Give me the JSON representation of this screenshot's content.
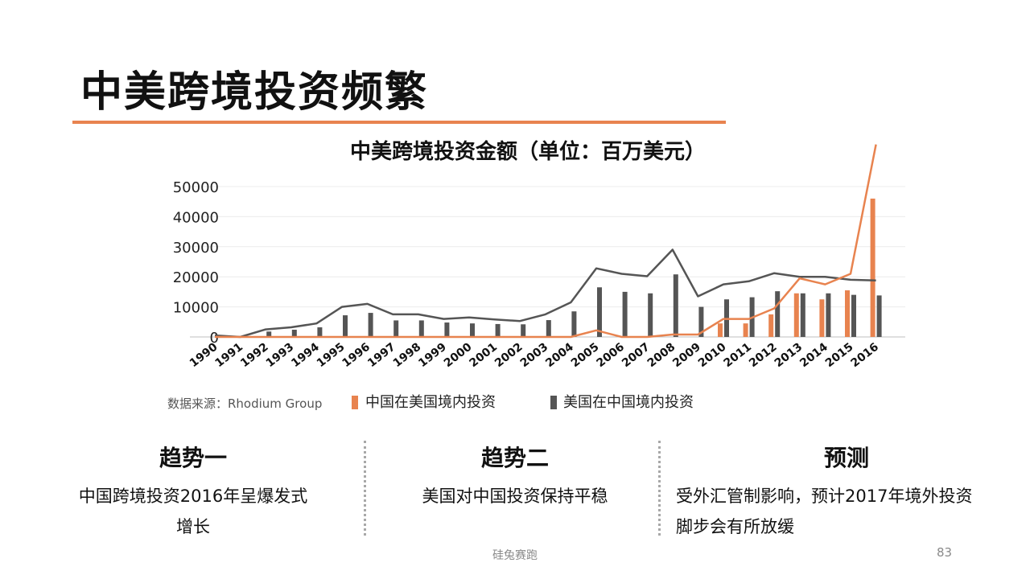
{
  "slide": {
    "title": "中美跨境投资频繁",
    "accent_color": "#e8834f",
    "footer_text": "硅兔赛跑",
    "page_number": "83"
  },
  "chart_data": {
    "type": "bar",
    "title": "中美跨境投资金额（单位：百万美元）",
    "source": "数据来源：Rhodium Group",
    "ylim": [
      0,
      50000
    ],
    "yticks": [
      "50000",
      "40000",
      "30000",
      "20000",
      "10000",
      "0"
    ],
    "grid": true,
    "legend_position": "bottom",
    "categories": [
      "1990",
      "1991",
      "1992",
      "1993",
      "1994",
      "1995",
      "1996",
      "1997",
      "1998",
      "1999",
      "2000",
      "2001",
      "2002",
      "2003",
      "2004",
      "2005",
      "2006",
      "2007",
      "2008",
      "2009",
      "2010",
      "2011",
      "2012",
      "2013",
      "2014",
      "2015",
      "2016"
    ],
    "series": [
      {
        "name": "中国在美国境内投资",
        "color": "#e8834f",
        "bar_values": [
          0,
          0,
          0,
          0,
          0,
          0,
          0,
          0,
          0,
          0,
          0,
          0,
          0,
          0,
          0,
          0,
          0,
          0,
          0,
          0,
          4500,
          4500,
          7500,
          14500,
          12500,
          15500,
          46000
        ],
        "line_values": [
          0,
          0,
          0,
          0,
          0,
          0,
          0,
          0,
          0,
          0,
          0,
          0,
          0,
          0,
          0,
          2200,
          0,
          0,
          800,
          800,
          6000,
          6000,
          9500,
          19500,
          17500,
          21000,
          64000
        ]
      },
      {
        "name": "美国在中国境内投资",
        "color": "#555555",
        "bar_values": [
          500,
          200,
          1800,
          2400,
          3200,
          7200,
          8000,
          5500,
          5500,
          4800,
          4500,
          4300,
          4200,
          5600,
          8500,
          16500,
          15000,
          14500,
          20800,
          10000,
          12500,
          13200,
          15200,
          14500,
          14500,
          14000,
          13800
        ],
        "line_values": [
          500,
          0,
          2500,
          3200,
          4500,
          10000,
          11000,
          7500,
          7500,
          6000,
          6500,
          5800,
          5300,
          7500,
          11500,
          22800,
          21000,
          20200,
          29000,
          13500,
          17500,
          18500,
          21200,
          20000,
          20000,
          19000,
          18800
        ]
      }
    ]
  },
  "trends": [
    {
      "heading": "趋势一",
      "lines": [
        "中国跨境投资2016年呈爆发式增长"
      ]
    },
    {
      "heading": "趋势二",
      "lines": [
        "美国对中国投资保持平稳"
      ]
    },
    {
      "heading": "预测",
      "lines": [
        "受外汇管制影响，预计2017年境外投资",
        "脚步会有所放缓"
      ]
    }
  ]
}
